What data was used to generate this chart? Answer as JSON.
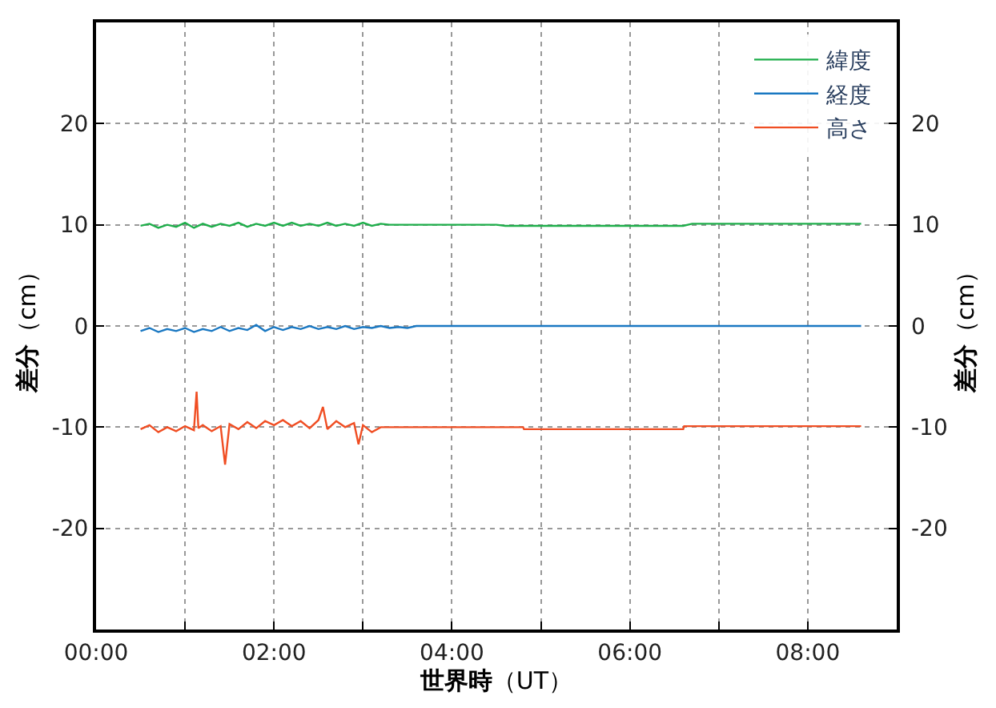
{
  "chart_data": {
    "type": "line",
    "xlabel": "世界時（UT）",
    "ylabel": "差分（cm）",
    "y2label": "差分（cm）",
    "xlim": [
      0,
      9
    ],
    "xticks": [
      {
        "value": 0,
        "label": "00:00"
      },
      {
        "value": 1,
        "label": null
      },
      {
        "value": 2,
        "label": "02:00"
      },
      {
        "value": 3,
        "label": null
      },
      {
        "value": 4,
        "label": "04:00"
      },
      {
        "value": 5,
        "label": null
      },
      {
        "value": 6,
        "label": "06:00"
      },
      {
        "value": 7,
        "label": null
      },
      {
        "value": 8,
        "label": "08:00"
      }
    ],
    "ylim": [
      -30,
      30
    ],
    "yticks": [
      -20,
      -10,
      0,
      10,
      20
    ],
    "y2lim": [
      -30,
      30
    ],
    "y2ticks": [
      -20,
      -10,
      0,
      10,
      20
    ],
    "grid": true,
    "legend": "top right",
    "marker": "none",
    "line_style": "solid",
    "series": [
      {
        "name": "緯度",
        "color": "#1fae4b",
        "x": [
          0.5,
          0.6,
          0.7,
          0.8,
          0.9,
          1.0,
          1.1,
          1.2,
          1.3,
          1.4,
          1.5,
          1.6,
          1.7,
          1.8,
          1.9,
          2.0,
          2.1,
          2.2,
          2.3,
          2.4,
          2.5,
          2.6,
          2.7,
          2.8,
          2.9,
          3.0,
          3.1,
          3.2,
          3.3,
          4.5,
          4.6,
          6.6,
          6.7,
          8.6
        ],
        "values": [
          9.9,
          10.1,
          9.7,
          10.0,
          9.8,
          10.2,
          9.7,
          10.1,
          9.8,
          10.1,
          9.9,
          10.2,
          9.8,
          10.1,
          9.9,
          10.2,
          9.9,
          10.2,
          9.9,
          10.1,
          9.9,
          10.2,
          9.9,
          10.1,
          9.9,
          10.2,
          9.9,
          10.1,
          10.0,
          10.0,
          9.9,
          9.9,
          10.1,
          10.1
        ]
      },
      {
        "name": "経度",
        "color": "#1a78c2",
        "x": [
          0.5,
          0.6,
          0.7,
          0.8,
          0.9,
          1.0,
          1.1,
          1.2,
          1.3,
          1.4,
          1.5,
          1.6,
          1.7,
          1.8,
          1.9,
          2.0,
          2.1,
          2.2,
          2.3,
          2.4,
          2.5,
          2.6,
          2.7,
          2.8,
          2.9,
          3.0,
          3.1,
          3.2,
          3.3,
          3.4,
          3.5,
          3.6,
          8.6
        ],
        "values": [
          -0.5,
          -0.2,
          -0.6,
          -0.3,
          -0.5,
          -0.2,
          -0.6,
          -0.3,
          -0.5,
          -0.1,
          -0.5,
          -0.2,
          -0.4,
          0.1,
          -0.5,
          -0.1,
          -0.4,
          -0.1,
          -0.3,
          0.0,
          -0.3,
          -0.1,
          -0.3,
          0.0,
          -0.3,
          -0.1,
          -0.2,
          0.0,
          -0.2,
          -0.1,
          -0.2,
          0.0,
          0.0
        ]
      },
      {
        "name": "高さ",
        "color": "#f04e23",
        "x": [
          0.5,
          0.6,
          0.7,
          0.8,
          0.9,
          1.0,
          1.1,
          1.13,
          1.15,
          1.2,
          1.3,
          1.4,
          1.45,
          1.5,
          1.6,
          1.7,
          1.8,
          1.9,
          2.0,
          2.1,
          2.2,
          2.3,
          2.4,
          2.5,
          2.55,
          2.6,
          2.7,
          2.8,
          2.9,
          2.95,
          3.0,
          3.1,
          3.2,
          3.3,
          4.8,
          4.81,
          6.6,
          6.61,
          8.6
        ],
        "values": [
          -10.2,
          -9.8,
          -10.5,
          -10.0,
          -10.4,
          -9.9,
          -10.3,
          -6.5,
          -10.1,
          -9.8,
          -10.4,
          -9.9,
          -13.7,
          -9.7,
          -10.2,
          -9.5,
          -10.1,
          -9.4,
          -9.8,
          -9.3,
          -9.9,
          -9.4,
          -10.1,
          -9.3,
          -8.0,
          -10.2,
          -9.4,
          -10.0,
          -9.6,
          -11.7,
          -9.8,
          -10.5,
          -10.0,
          -10.0,
          -10.0,
          -10.2,
          -10.2,
          -9.9,
          -9.9
        ]
      }
    ]
  }
}
